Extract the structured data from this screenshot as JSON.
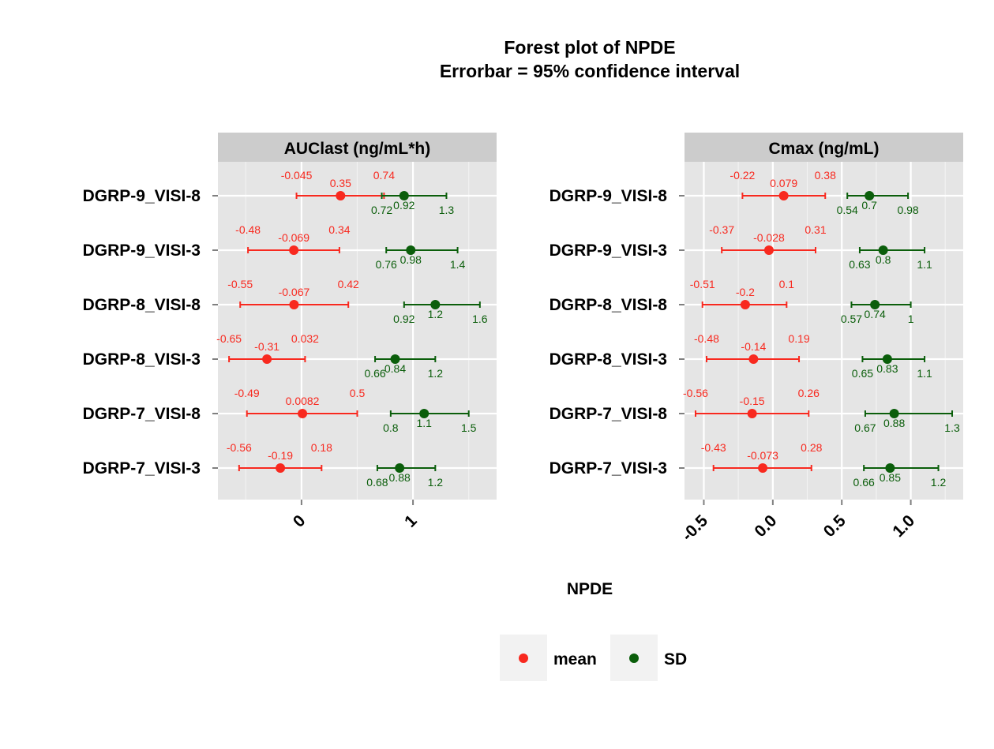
{
  "colors": {
    "mean": "#F8291F",
    "sd": "#0B5E0B",
    "panel_bg": "#E5E5E5",
    "strip_bg": "#CCCCCC",
    "grid_major": "#FFFFFF",
    "grid_minor": "#F2F2F2",
    "legend_key_bg": "#F2F2F2",
    "text": "#000000"
  },
  "chart_data": {
    "type": "forest",
    "title": "Forest plot of NPDE",
    "subtitle": "Errorbar = 95% confidence interval",
    "xlabel": "NPDE",
    "ylabel": "",
    "grid": true,
    "legend": {
      "placement": "bottom",
      "entries": [
        {
          "key": "mean",
          "label": "mean"
        },
        {
          "key": "sd",
          "label": "SD"
        }
      ]
    },
    "categories": [
      "DGRP-9_VISI-8",
      "DGRP-9_VISI-3",
      "DGRP-8_VISI-8",
      "DGRP-8_VISI-3",
      "DGRP-7_VISI-8",
      "DGRP-7_VISI-3"
    ],
    "panels": [
      {
        "title": "AUClast (ng/mL*h)",
        "xlim": [
          -0.75,
          1.75
        ],
        "xticks": [
          0,
          1
        ],
        "xtick_labels": [
          "0",
          "1"
        ],
        "series": [
          {
            "key": "mean",
            "estimate": [
              0.35,
              -0.069,
              -0.067,
              -0.31,
              0.0082,
              -0.19
            ],
            "lower": [
              -0.045,
              -0.48,
              -0.55,
              -0.65,
              -0.49,
              -0.56
            ],
            "upper": [
              0.74,
              0.34,
              0.42,
              0.032,
              0.5,
              0.18
            ],
            "estimate_labels": [
              "0.35",
              "-0.069",
              "-0.067",
              "-0.31",
              "0.0082",
              "-0.19"
            ],
            "lower_labels": [
              "-0.045",
              "-0.48",
              "-0.55",
              "-0.65",
              "-0.49",
              "-0.56"
            ],
            "upper_labels": [
              "0.74",
              "0.34",
              "0.42",
              "0.032",
              "0.5",
              "0.18"
            ]
          },
          {
            "key": "sd",
            "estimate": [
              0.92,
              0.98,
              1.2,
              0.84,
              1.1,
              0.88
            ],
            "lower": [
              0.72,
              0.76,
              0.92,
              0.66,
              0.8,
              0.68
            ],
            "upper": [
              1.3,
              1.4,
              1.6,
              1.2,
              1.5,
              1.2
            ],
            "estimate_labels": [
              "0.92",
              "0.98",
              "1.2",
              "0.84",
              "1.1",
              "0.88"
            ],
            "lower_labels": [
              "0.72",
              "0.76",
              "0.92",
              "0.66",
              "0.8",
              "0.68"
            ],
            "upper_labels": [
              "1.3",
              "1.4",
              "1.6",
              "1.2",
              "1.5",
              "1.2"
            ]
          }
        ]
      },
      {
        "title": "Cmax (ng/mL)",
        "xlim": [
          -0.64,
          1.38
        ],
        "xticks": [
          -0.5,
          0.0,
          0.5,
          1.0
        ],
        "xtick_labels": [
          "-0.5",
          "0.0",
          "0.5",
          "1.0"
        ],
        "series": [
          {
            "key": "mean",
            "estimate": [
              0.079,
              -0.028,
              -0.2,
              -0.14,
              -0.15,
              -0.073
            ],
            "lower": [
              -0.22,
              -0.37,
              -0.51,
              -0.48,
              -0.56,
              -0.43
            ],
            "upper": [
              0.38,
              0.31,
              0.1,
              0.19,
              0.26,
              0.28
            ],
            "estimate_labels": [
              "0.079",
              "-0.028",
              "-0.2",
              "-0.14",
              "-0.15",
              "-0.073"
            ],
            "lower_labels": [
              "-0.22",
              "-0.37",
              "-0.51",
              "-0.48",
              "-0.56",
              "-0.43"
            ],
            "upper_labels": [
              "0.38",
              "0.31",
              "0.1",
              "0.19",
              "0.26",
              "0.28"
            ]
          },
          {
            "key": "sd",
            "estimate": [
              0.7,
              0.8,
              0.74,
              0.83,
              0.88,
              0.85
            ],
            "lower": [
              0.54,
              0.63,
              0.57,
              0.65,
              0.67,
              0.66
            ],
            "upper": [
              0.98,
              1.1,
              1,
              1.1,
              1.3,
              1.2
            ],
            "estimate_labels": [
              "0.7",
              "0.8",
              "0.74",
              "0.83",
              "0.88",
              "0.85"
            ],
            "lower_labels": [
              "0.54",
              "0.63",
              "0.57",
              "0.65",
              "0.67",
              "0.66"
            ],
            "upper_labels": [
              "0.98",
              "1.1",
              "1",
              "1.1",
              "1.3",
              "1.2"
            ]
          }
        ]
      }
    ]
  }
}
